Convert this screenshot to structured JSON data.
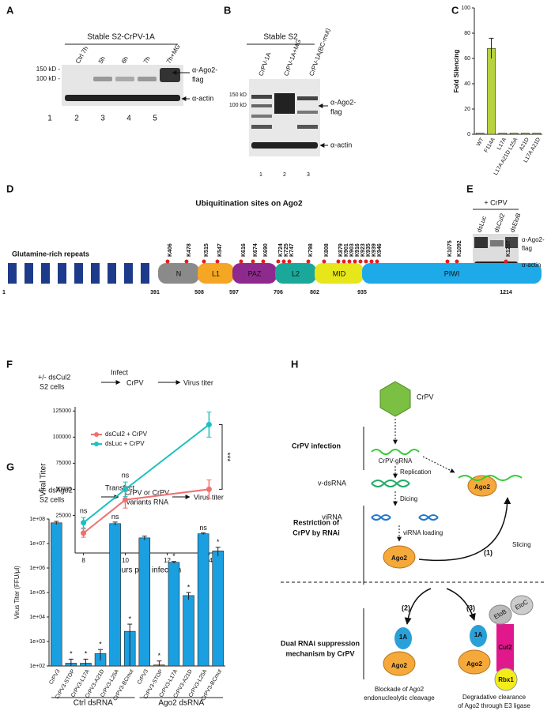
{
  "panels": {
    "A": {
      "letter": "A",
      "title": "Stable S2-CrPV-1A",
      "lanes": [
        "Ctrl 7h",
        "5h",
        "6h",
        "7h",
        "7h+MG"
      ],
      "markers": [
        "150 kD -",
        "100 kD -"
      ],
      "antibodies": [
        "α-Ago2-",
        "flag",
        "α-actin"
      ],
      "lane_numbers": [
        "1",
        "2",
        "3",
        "4",
        "5"
      ]
    },
    "B": {
      "letter": "B",
      "title": "Stable S2",
      "lanes": [
        "CrPV-1A",
        "CrPV-1A+MG",
        "CrPV-1A(BC-mut)"
      ],
      "markers": [
        "150 kD",
        "100 kD"
      ],
      "antibodies": [
        "α-Ago2-",
        "flag",
        "α-actin"
      ],
      "lane_numbers": [
        "1",
        "2",
        "3"
      ]
    },
    "C": {
      "letter": "C"
    },
    "D": {
      "letter": "D",
      "title": "Ubiquitination sites on Ago2",
      "repeats": "Glutamine-rich repeats",
      "domains": [
        "N",
        "L1",
        "PAZ",
        "L2",
        "MID",
        "PIWI"
      ],
      "boundaries": [
        "1",
        "391",
        "508",
        "597",
        "706",
        "802",
        "935",
        "1214"
      ],
      "sites": [
        "K406",
        "K478",
        "K515",
        "K547",
        "K616",
        "K674",
        "K690",
        "K724",
        "K725",
        "K747",
        "K798",
        "K808",
        "K879",
        "K901",
        "K903",
        "K916",
        "K923",
        "K935",
        "K939",
        "K946",
        "K1075",
        "K1092",
        "K1207"
      ]
    },
    "E": {
      "letter": "E",
      "title": "+ CrPV",
      "lanes": [
        "dsLuc",
        "dsCul2",
        "dsEloB"
      ],
      "antibodies": [
        "α-Ago2-",
        "flag",
        "α-actin"
      ]
    },
    "F": {
      "letter": "F",
      "flow": [
        "+/- dsCul2",
        "S2 cells",
        "Infect",
        "CrPV",
        "Virus titer"
      ]
    },
    "G": {
      "letter": "G",
      "flow": [
        "+/- dsAgo2",
        "S2 cells",
        "Transfect",
        "CrPV or CrPV",
        "variants RNA",
        "Virus titer"
      ]
    },
    "H": {
      "letter": "H",
      "texts": [
        "CrPV",
        "CrPV infection",
        "CrPV-gRNA",
        "Replication",
        "v-dsRNA",
        "Dicing",
        "Restriction of",
        "CrPV by RNAi",
        "viRNA",
        "viRNA loading",
        "Ago2",
        "(1)",
        "Slicing",
        "(2)",
        "(3)",
        "Dual  RNAi suppression",
        "mechanism  by  CrPV",
        "1A",
        "Ago2",
        "Blockade of Ago2",
        "endonucleolytic cleavage",
        "EloB",
        "EloC",
        "Cul2",
        "Rbx1",
        "1A",
        "Ago2",
        "Degradative clearance",
        "of Ago2 through E3 ligase",
        "Ago2"
      ]
    }
  },
  "chart_data": [
    {
      "type": "bar",
      "ylabel": "Fold Silencing",
      "categories": [
        "WT",
        "F114A",
        "L17A",
        "L17A A21D L25A",
        "A21D",
        "L17A A21D"
      ],
      "values": [
        1,
        68,
        1,
        1,
        1,
        1
      ],
      "errors": [
        0,
        8,
        0,
        0,
        0,
        0
      ],
      "color": "#b7d23e",
      "ylim": [
        0,
        100
      ],
      "yticks": [
        0,
        20,
        40,
        60,
        80,
        100
      ]
    },
    {
      "type": "line",
      "xlabel": "Hours post infection",
      "ylabel": "Viral Titer",
      "xlim": [
        7.6,
        14.4
      ],
      "xticks": [
        8,
        10,
        12,
        14
      ],
      "ylim": [
        -11000,
        129000
      ],
      "yticks": [
        25000,
        50000,
        75000,
        100000,
        125000
      ],
      "x": [
        8,
        10,
        14
      ],
      "series": [
        {
          "name": "dsCul2 + CrPV",
          "color": "#f07070",
          "values": [
            8000,
            40000,
            50000
          ],
          "errors": [
            4000,
            8000,
            9000
          ]
        },
        {
          "name": "dsLuc + CrPV",
          "color": "#1fbfbf",
          "values": [
            18000,
            50000,
            112000
          ],
          "errors": [
            5000,
            7000,
            12000
          ]
        }
      ],
      "annotations": [
        "ns",
        "ns",
        "***"
      ],
      "legend": "upper-left"
    },
    {
      "type": "bar",
      "log": true,
      "ylabel": "Virus  Titer (FFU/µl)",
      "categories": [
        "CrPV3",
        "CrPV3-STOP",
        "CrPV3-L17A",
        "CrPV3-A21D",
        "CrPV3-L25A",
        "CrPV3-BCmut",
        "CrPV3",
        "CrPV3-STOP",
        "CrPV3-L17A",
        "CrPV3-A21D",
        "CrPV3-L25A",
        "CrPV3-BCmut"
      ],
      "values": [
        70000000,
        130,
        130,
        320,
        65000000,
        2600,
        17000000,
        110,
        1700000,
        75000,
        25000000,
        5000000
      ],
      "errors": [
        10000000,
        60,
        60,
        150,
        10000000,
        2500,
        3000000,
        50,
        150000,
        25000,
        2000000,
        2000000
      ],
      "annotations": [
        null,
        "*",
        "*",
        "*",
        "ns",
        "*",
        null,
        "*",
        "*",
        "*",
        "ns",
        "*"
      ],
      "groups": [
        "Ctrl dsRNA",
        "Ago2 dsRNA"
      ],
      "color": "#1a9fe0",
      "ylim": [
        100,
        100000000
      ],
      "yticks": [
        {
          "value": 100,
          "label": "1e+02"
        },
        {
          "value": 1000,
          "label": "1e+03"
        },
        {
          "value": 10000,
          "label": "1e+04"
        },
        {
          "value": 100000,
          "label": "1e+05"
        },
        {
          "value": 1000000,
          "label": "1e+06"
        },
        {
          "value": 10000000,
          "label": "1e+07"
        },
        {
          "value": 100000000,
          "label": "1e+08"
        }
      ]
    }
  ]
}
